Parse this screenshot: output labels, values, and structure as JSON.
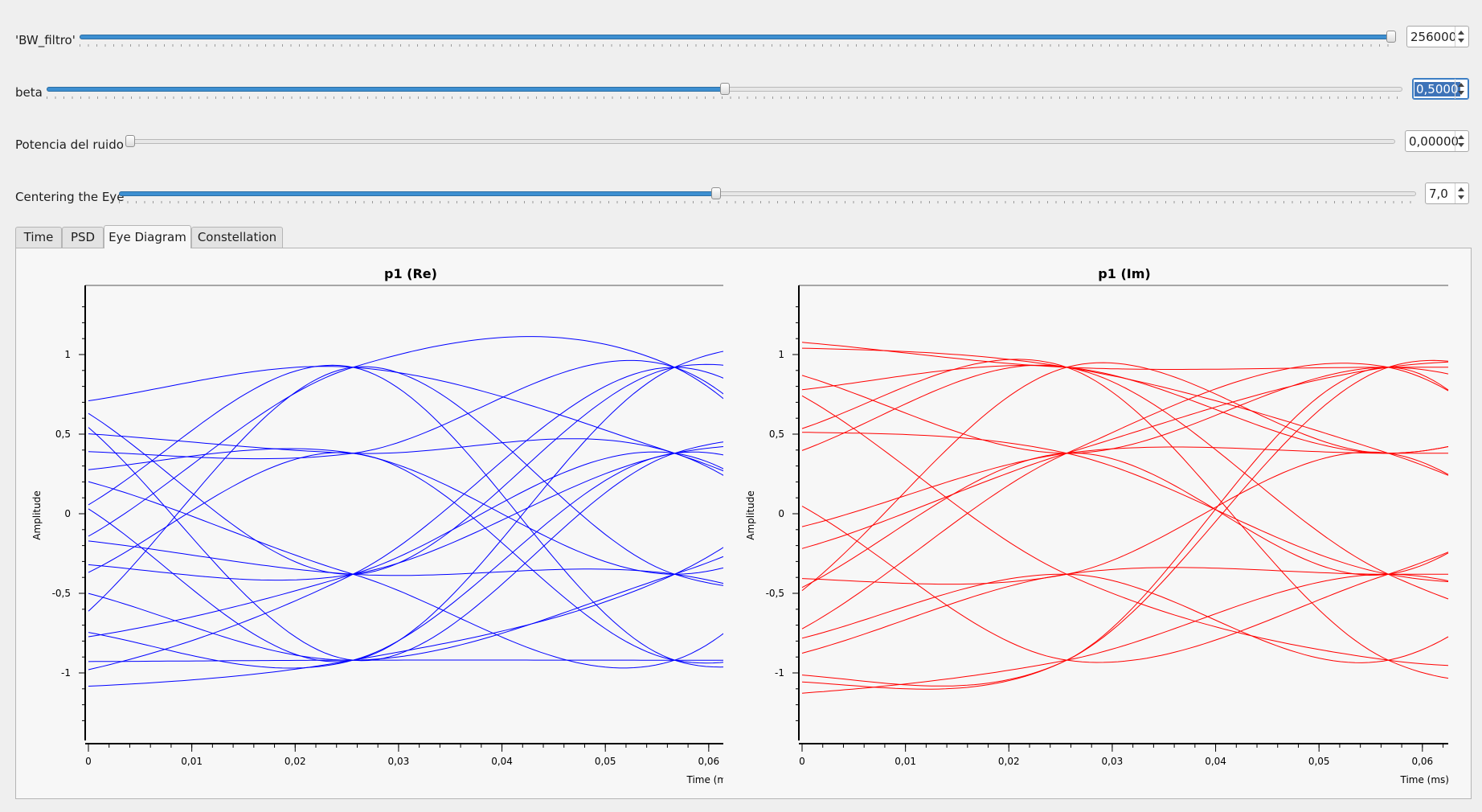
{
  "controls": [
    {
      "label": "'BW_filtro'",
      "value": "256000",
      "fraction": 1.0,
      "selected": false
    },
    {
      "label": "beta",
      "value": "0,5000",
      "fraction": 0.5,
      "selected": true
    },
    {
      "label": "Potencia del ruido",
      "value": "0,00000",
      "fraction": 0.0,
      "selected": false
    },
    {
      "label": "Centering the Eye",
      "value": "7,0",
      "fraction": 0.46,
      "selected": false
    }
  ],
  "tabs": [
    {
      "label": "Time",
      "active": false
    },
    {
      "label": "PSD",
      "active": false
    },
    {
      "label": "Eye Diagram",
      "active": true
    },
    {
      "label": "Constellation",
      "active": false
    }
  ],
  "chart_data": [
    {
      "type": "line",
      "title": "p1 (Re)",
      "xlabel": "Time (ms)",
      "ylabel": "Amplitude",
      "color": "#0000ff",
      "x_ticks": [
        "0",
        "0,01",
        "0,02",
        "0,03",
        "0,04",
        "0,05",
        "0,06"
      ],
      "y_ticks": [
        "1",
        "0,5",
        "0",
        "-0,5",
        "-1"
      ],
      "xlim": [
        0,
        0.0625
      ],
      "ylim": [
        -1.4,
        1.4
      ],
      "eye_time": 0.0256,
      "symbol_period": 0.0311,
      "levels": [
        0.92,
        0.38,
        -0.38,
        -0.92
      ],
      "traces": [
        [
          0.8,
          -0.38,
          0.92,
          0.38
        ],
        [
          0.67,
          0.92,
          0.38,
          -0.38
        ],
        [
          0.52,
          0.38,
          0.38,
          -0.92
        ],
        [
          0.28,
          -0.38,
          -0.92,
          0.92
        ],
        [
          0.25,
          0.38,
          -0.38,
          0.38
        ],
        [
          0.2,
          -0.92,
          0.92,
          0.92
        ],
        [
          -0.1,
          0.92,
          -0.92,
          -0.38
        ],
        [
          -0.14,
          -0.38,
          -0.38,
          -0.92
        ],
        [
          -0.3,
          -0.38,
          0.38,
          0.38
        ],
        [
          -0.3,
          0.92,
          0.92,
          -0.92
        ],
        [
          -0.43,
          -0.92,
          -0.38,
          0.38
        ],
        [
          -0.5,
          0.38,
          -0.92,
          -0.38
        ],
        [
          -0.82,
          -0.38,
          0.38,
          -0.92
        ],
        [
          -0.86,
          0.92,
          -0.38,
          -0.38
        ],
        [
          -0.93,
          -0.92,
          -0.92,
          -0.92
        ],
        [
          -1.05,
          -0.38,
          0.92,
          -0.38
        ],
        [
          -1.1,
          -0.92,
          -0.38,
          0.92
        ],
        [
          0.78,
          -0.92,
          0.38,
          0.38
        ],
        [
          0.4,
          0.38,
          0.92,
          -0.92
        ],
        [
          -0.7,
          -0.92,
          0.38,
          -0.38
        ]
      ]
    },
    {
      "type": "line",
      "title": "p1 (Im)",
      "xlabel": "Time (ms)",
      "ylabel": "Amplitude",
      "color": "#ff0000",
      "x_ticks": [
        "0",
        "0,01",
        "0,02",
        "0,03",
        "0,04",
        "0,05",
        "0,06"
      ],
      "y_ticks": [
        "1",
        "0,5",
        "0",
        "-0,5",
        "-1"
      ],
      "xlim": [
        0,
        0.0625
      ],
      "ylim": [
        -1.4,
        1.4
      ],
      "eye_time": 0.0256,
      "symbol_period": 0.0311,
      "levels": [
        0.92,
        0.38,
        -0.38,
        -0.92
      ],
      "traces": [
        [
          1.1,
          0.92,
          0.92,
          0.92
        ],
        [
          1.05,
          0.92,
          0.38,
          -0.38
        ],
        [
          0.95,
          0.38,
          0.92,
          0.38
        ],
        [
          0.9,
          -0.38,
          -0.92,
          -0.92
        ],
        [
          0.75,
          0.92,
          0.38,
          0.92
        ],
        [
          0.52,
          0.38,
          -0.38,
          -0.38
        ],
        [
          0.45,
          0.92,
          -0.92,
          -0.92
        ],
        [
          0.2,
          -0.92,
          -0.38,
          0.38
        ],
        [
          -0.15,
          0.38,
          0.38,
          0.38
        ],
        [
          -0.3,
          0.38,
          0.92,
          0.92
        ],
        [
          -0.4,
          -0.38,
          0.38,
          -0.92
        ],
        [
          -0.6,
          0.38,
          -0.38,
          0.92
        ],
        [
          -0.85,
          -0.38,
          -0.92,
          0.38
        ],
        [
          -0.88,
          0.38,
          0.92,
          -0.38
        ],
        [
          -1.0,
          -0.92,
          0.92,
          0.38
        ],
        [
          -1.15,
          -0.92,
          -0.38,
          -0.92
        ],
        [
          -1.05,
          -0.92,
          0.92,
          -0.92
        ],
        [
          0.3,
          0.92,
          -0.38,
          -0.92
        ],
        [
          -0.7,
          0.92,
          0.38,
          0.92
        ],
        [
          -0.95,
          -0.38,
          -0.38,
          -0.38
        ]
      ]
    }
  ]
}
